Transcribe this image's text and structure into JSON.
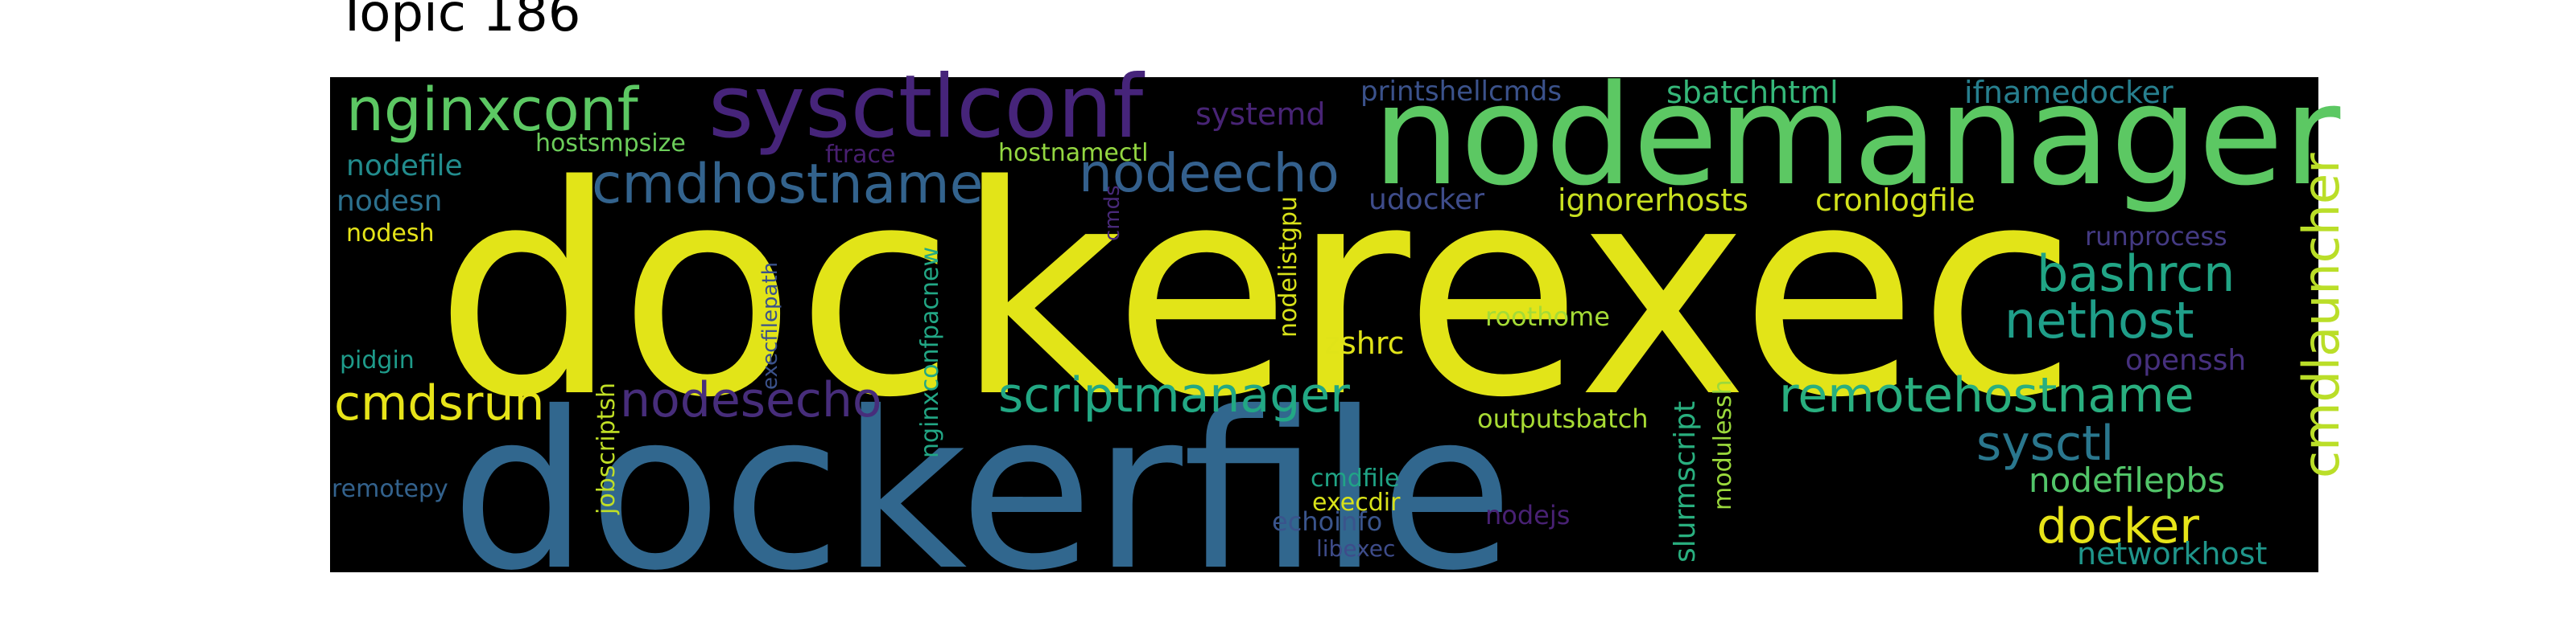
{
  "chart_data": {
    "type": "wordcloud",
    "title": "Topic 186",
    "background": "#000000",
    "words": [
      {
        "text": "dockerexec",
        "color": "#e2e418"
      },
      {
        "text": "dockerfile",
        "color": "#31678e"
      },
      {
        "text": "nodemanager",
        "color": "#5cc863"
      },
      {
        "text": "sysctlconf",
        "color": "#46247a"
      },
      {
        "text": "nginxconf",
        "color": "#5cc863"
      },
      {
        "text": "cmdhostname",
        "color": "#33638d"
      },
      {
        "text": "nodeecho",
        "color": "#34608d"
      },
      {
        "text": "cmdlauncher",
        "color": "#bade28"
      },
      {
        "text": "bashrcn",
        "color": "#21a585"
      },
      {
        "text": "nethost",
        "color": "#1f9e89"
      },
      {
        "text": "remotehostname",
        "color": "#29af7f"
      },
      {
        "text": "scriptmanager",
        "color": "#22a884"
      },
      {
        "text": "nodesecho",
        "color": "#472d7b"
      },
      {
        "text": "cmdsrun",
        "color": "#e7e419"
      },
      {
        "text": "sysctl",
        "color": "#2a778e"
      },
      {
        "text": "docker",
        "color": "#e7e419"
      },
      {
        "text": "nodefilepbs",
        "color": "#52c569"
      },
      {
        "text": "networkhost",
        "color": "#1f968b"
      },
      {
        "text": "systemd",
        "color": "#482475"
      },
      {
        "text": "sbatchhtml",
        "color": "#35b779"
      },
      {
        "text": "ifnamedocker",
        "color": "#277f8e"
      },
      {
        "text": "printshellcmds",
        "color": "#3b528b"
      },
      {
        "text": "ignorerhosts",
        "color": "#c8e020"
      },
      {
        "text": "cronlogfile",
        "color": "#d2e21b"
      },
      {
        "text": "udocker",
        "color": "#3e4c8a"
      },
      {
        "text": "hostsmpsize",
        "color": "#6ccd5a"
      },
      {
        "text": "ftrace",
        "color": "#481f70"
      },
      {
        "text": "hostnamectl",
        "color": "#93d741"
      },
      {
        "text": "nodefile",
        "color": "#228c8d"
      },
      {
        "text": "nodesn",
        "color": "#2c718e"
      },
      {
        "text": "nodesh",
        "color": "#e5e419"
      },
      {
        "text": "runprocess",
        "color": "#443a83"
      },
      {
        "text": "openssh",
        "color": "#46307e"
      },
      {
        "text": "zshrc",
        "color": "#e0e318"
      },
      {
        "text": "roothome",
        "color": "#a5db36"
      },
      {
        "text": "nodelistgpu",
        "color": "#d8e219"
      },
      {
        "text": "pidgin",
        "color": "#1e9b8a"
      },
      {
        "text": "execfilepath",
        "color": "#3b528b"
      },
      {
        "text": "nginxconfpacnew",
        "color": "#22a785"
      },
      {
        "text": "cmds",
        "color": "#482979"
      },
      {
        "text": "jobscriptsh",
        "color": "#c0df25"
      },
      {
        "text": "slurmscript",
        "color": "#29af7f"
      },
      {
        "text": "modulessh",
        "color": "#9bd93c"
      },
      {
        "text": "outputsbatch",
        "color": "#a8db34"
      },
      {
        "text": "cmdfile",
        "color": "#20a486"
      },
      {
        "text": "execdir",
        "color": "#d8e219"
      },
      {
        "text": "echoinfo",
        "color": "#3a548c"
      },
      {
        "text": "libexec",
        "color": "#3e4c8a"
      },
      {
        "text": "nodejs",
        "color": "#482173"
      },
      {
        "text": "remotepy",
        "color": "#33628d"
      }
    ]
  }
}
